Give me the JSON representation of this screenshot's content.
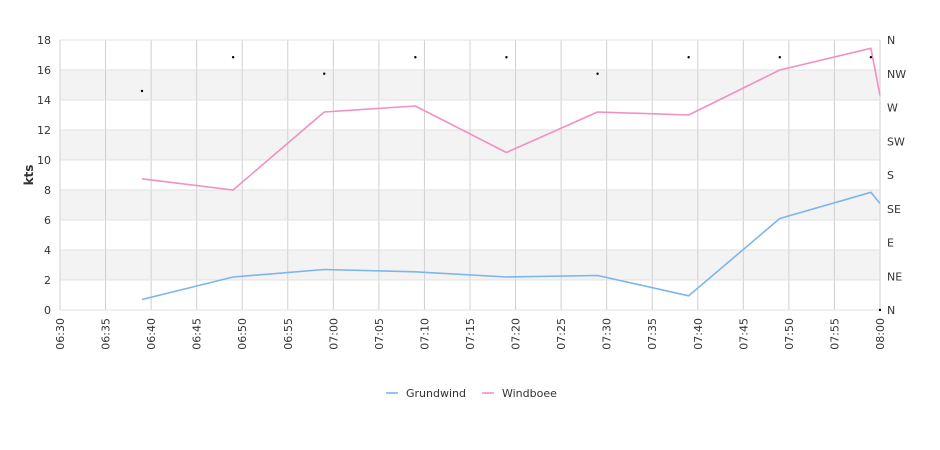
{
  "chart_data": {
    "type": "line",
    "title": "",
    "ylabel": "kts",
    "ylim": [
      0,
      18
    ],
    "y_ticks": [
      "0",
      "2",
      "4",
      "6",
      "8",
      "10",
      "12",
      "14",
      "16",
      "18"
    ],
    "x_ticks": [
      "06:30",
      "06:35",
      "06:40",
      "06:45",
      "06:50",
      "06:55",
      "07:00",
      "07:05",
      "07:10",
      "07:15",
      "07:20",
      "07:25",
      "07:30",
      "07:35",
      "07:40",
      "07:45",
      "07:50",
      "07:55",
      "08:00"
    ],
    "x": [
      "06:39",
      "06:49",
      "06:59",
      "07:09",
      "07:19",
      "07:29",
      "07:39",
      "07:49",
      "07:59",
      "08:00"
    ],
    "series": [
      {
        "name": "Grundwind",
        "color": "#7cb5ec",
        "values": [
          0.7,
          2.2,
          2.7,
          2.55,
          2.2,
          2.3,
          0.95,
          6.1,
          7.85,
          7.1
        ]
      },
      {
        "name": "Windboee",
        "color": "#f28fc3",
        "values": [
          8.75,
          8.0,
          13.2,
          13.6,
          10.5,
          13.2,
          13.0,
          16.0,
          17.45,
          14.3
        ]
      }
    ],
    "direction_axis": {
      "labels": [
        "N",
        "NE",
        "E",
        "SE",
        "S",
        "SW",
        "W",
        "NW",
        "N"
      ],
      "points": [
        {
          "x": "06:39",
          "deg": 292
        },
        {
          "x": "06:49",
          "deg": 337
        },
        {
          "x": "06:59",
          "deg": 315
        },
        {
          "x": "07:09",
          "deg": 337
        },
        {
          "x": "07:19",
          "deg": 337
        },
        {
          "x": "07:29",
          "deg": 315
        },
        {
          "x": "07:39",
          "deg": 337
        },
        {
          "x": "07:49",
          "deg": 337
        },
        {
          "x": "07:59",
          "deg": 337
        },
        {
          "x": "08:00",
          "deg": 0
        }
      ]
    },
    "grid": true,
    "legend": "bottom-center"
  }
}
